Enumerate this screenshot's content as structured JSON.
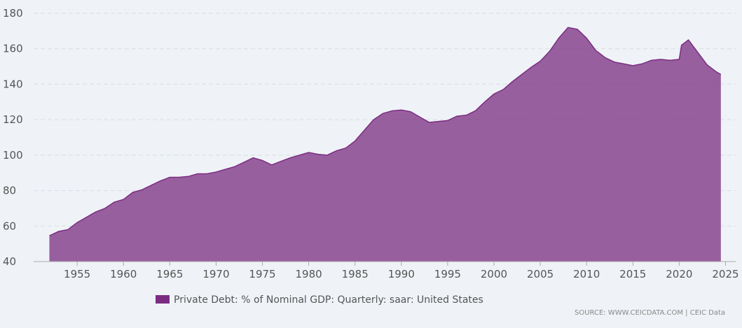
{
  "chart_data": {
    "type": "area",
    "x": [
      1952,
      1953,
      1954,
      1955,
      1956,
      1957,
      1958,
      1959,
      1960,
      1961,
      1962,
      1963,
      1964,
      1965,
      1966,
      1967,
      1968,
      1969,
      1970,
      1971,
      1972,
      1973,
      1974,
      1975,
      1976,
      1977,
      1978,
      1979,
      1980,
      1981,
      1982,
      1983,
      1984,
      1985,
      1986,
      1987,
      1988,
      1989,
      1990,
      1991,
      1992,
      1993,
      1994,
      1995,
      1996,
      1997,
      1998,
      1999,
      2000,
      2001,
      2002,
      2003,
      2004,
      2005,
      2006,
      2007,
      2008,
      2009,
      2010,
      2011,
      2012,
      2013,
      2014,
      2015,
      2016,
      2017,
      2018,
      2019,
      2020,
      2020.25,
      2021,
      2022,
      2023,
      2024,
      2024.5
    ],
    "series": [
      {
        "name": "Private Debt: % of Nominal GDP: Quarterly: saar: United States",
        "color": "#7b2d82",
        "values": [
          54.5,
          57,
          58,
          62,
          65,
          68,
          70,
          73.5,
          75,
          79,
          80.5,
          83,
          85.5,
          87.5,
          87.5,
          88,
          89.5,
          89.5,
          90.5,
          92,
          93.5,
          96,
          98.5,
          97,
          94.5,
          96.5,
          98.5,
          100,
          101.5,
          100.5,
          100,
          102.5,
          104,
          108,
          114,
          120,
          123.5,
          125,
          125.5,
          124.5,
          121.5,
          118.5,
          119,
          119.5,
          122,
          122.5,
          125,
          130,
          134.5,
          137,
          141.5,
          145.5,
          149.5,
          153,
          158.5,
          166,
          172,
          171,
          166,
          159,
          155,
          152.5,
          151.5,
          150.5,
          151.5,
          153.5,
          154,
          153.5,
          154,
          162,
          165,
          158,
          151,
          147,
          145.5
        ]
      }
    ],
    "xlim": [
      1950.3,
      2026.1
    ],
    "xticks": [
      1955,
      1960,
      1965,
      1970,
      1975,
      1980,
      1985,
      1990,
      1995,
      2000,
      2005,
      2010,
      2015,
      2020,
      2025
    ],
    "ylim": [
      40,
      180
    ],
    "yticks": [
      40,
      60,
      80,
      100,
      120,
      140,
      160,
      180
    ],
    "grid": true,
    "source": "SOURCE: WWW.CEICDATA.COM | CEIC Data"
  }
}
